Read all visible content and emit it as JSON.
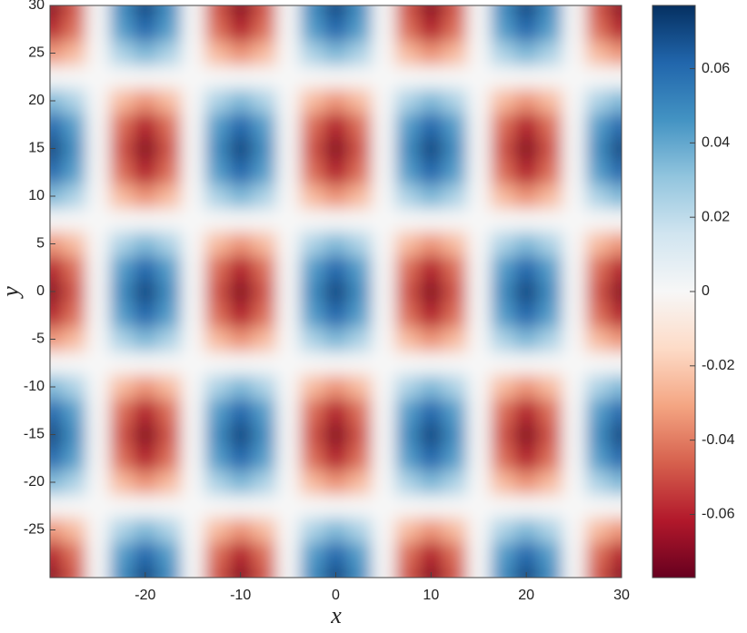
{
  "chart_data": {
    "type": "heatmap",
    "x_label": "x",
    "y_label": "y",
    "x": [
      -30,
      -27.5,
      -25,
      -22.5,
      -20,
      -17.5,
      -15,
      -12.5,
      -10,
      -7.5,
      -5,
      -2.5,
      0,
      2.5,
      5,
      7.5,
      10,
      12.5,
      15,
      17.5,
      20,
      22.5,
      25,
      27.5,
      30
    ],
    "y": [
      -30,
      -27.5,
      -25,
      -22.5,
      -20,
      -17.5,
      -15,
      -12.5,
      -10,
      -7.5,
      -5,
      -2.5,
      0,
      2.5,
      5,
      7.5,
      10,
      12.5,
      15,
      17.5,
      20,
      22.5,
      25,
      27.5,
      30
    ],
    "z": [
      [
        -0.07,
        -0.049,
        0,
        0.049,
        0.07,
        0.049,
        0,
        -0.049,
        -0.07,
        -0.049,
        0,
        0.049,
        0.07,
        0.049,
        0,
        -0.049,
        -0.07,
        -0.049,
        0,
        0.049,
        0.07,
        0.049,
        0,
        -0.049,
        -0.07
      ],
      [
        -0.061,
        -0.043,
        0,
        0.043,
        0.061,
        0.043,
        0,
        -0.043,
        -0.061,
        -0.043,
        0,
        0.043,
        0.061,
        0.043,
        0,
        -0.043,
        -0.061,
        -0.043,
        0,
        0.043,
        0.061,
        0.043,
        0,
        -0.043,
        -0.061
      ],
      [
        -0.035,
        -0.025,
        0,
        0.025,
        0.035,
        0.025,
        0,
        -0.025,
        -0.035,
        -0.025,
        0,
        0.025,
        0.035,
        0.025,
        0,
        -0.025,
        -0.035,
        -0.025,
        0,
        0.025,
        0.035,
        0.025,
        0,
        -0.025,
        -0.035
      ],
      [
        0,
        0,
        0,
        0,
        0,
        0,
        0,
        0,
        0,
        0,
        0,
        0,
        0,
        0,
        0,
        0,
        0,
        0,
        0,
        0,
        0,
        0,
        0,
        0,
        0
      ],
      [
        0.035,
        0.025,
        0,
        -0.025,
        -0.035,
        -0.025,
        0,
        0.025,
        0.035,
        0.025,
        0,
        -0.025,
        -0.035,
        -0.025,
        0,
        0.025,
        0.035,
        0.025,
        0,
        -0.025,
        -0.035,
        -0.025,
        0,
        0.025,
        0.035
      ],
      [
        0.061,
        0.043,
        0,
        -0.043,
        -0.061,
        -0.043,
        0,
        0.043,
        0.061,
        0.043,
        0,
        -0.043,
        -0.061,
        -0.043,
        0,
        0.043,
        0.061,
        0.043,
        0,
        -0.043,
        -0.061,
        -0.043,
        0,
        0.043,
        0.061
      ],
      [
        0.07,
        0.049,
        0,
        -0.049,
        -0.07,
        -0.049,
        0,
        0.049,
        0.07,
        0.049,
        0,
        -0.049,
        -0.07,
        -0.049,
        0,
        0.049,
        0.07,
        0.049,
        0,
        -0.049,
        -0.07,
        -0.049,
        0,
        0.049,
        0.07
      ],
      [
        0.061,
        0.043,
        0,
        -0.043,
        -0.061,
        -0.043,
        0,
        0.043,
        0.061,
        0.043,
        0,
        -0.043,
        -0.061,
        -0.043,
        0,
        0.043,
        0.061,
        0.043,
        0,
        -0.043,
        -0.061,
        -0.043,
        0,
        0.043,
        0.061
      ],
      [
        0.035,
        0.025,
        0,
        -0.025,
        -0.035,
        -0.025,
        0,
        0.025,
        0.035,
        0.025,
        0,
        -0.025,
        -0.035,
        -0.025,
        0,
        0.025,
        0.035,
        0.025,
        0,
        -0.025,
        -0.035,
        -0.025,
        0,
        0.025,
        0.035
      ],
      [
        0,
        0,
        0,
        0,
        0,
        0,
        0,
        0,
        0,
        0,
        0,
        0,
        0,
        0,
        0,
        0,
        0,
        0,
        0,
        0,
        0,
        0,
        0,
        0,
        0
      ],
      [
        -0.035,
        -0.025,
        0,
        0.025,
        0.035,
        0.025,
        0,
        -0.025,
        -0.035,
        -0.025,
        0,
        0.025,
        0.035,
        0.025,
        0,
        -0.025,
        -0.035,
        -0.025,
        0,
        0.025,
        0.035,
        0.025,
        0,
        -0.025,
        -0.035
      ],
      [
        -0.061,
        -0.043,
        0,
        0.043,
        0.061,
        0.043,
        0,
        -0.043,
        -0.061,
        -0.043,
        0,
        0.043,
        0.061,
        0.043,
        0,
        -0.043,
        -0.061,
        -0.043,
        0,
        0.043,
        0.061,
        0.043,
        0,
        -0.043,
        -0.061
      ],
      [
        -0.07,
        -0.049,
        0,
        0.049,
        0.07,
        0.049,
        0,
        -0.049,
        -0.07,
        -0.049,
        0,
        0.049,
        0.07,
        0.049,
        0,
        -0.049,
        -0.07,
        -0.049,
        0,
        0.049,
        0.07,
        0.049,
        0,
        -0.049,
        -0.07
      ],
      [
        -0.061,
        -0.043,
        0,
        0.043,
        0.061,
        0.043,
        0,
        -0.043,
        -0.061,
        -0.043,
        0,
        0.043,
        0.061,
        0.043,
        0,
        -0.043,
        -0.061,
        -0.043,
        0,
        0.043,
        0.061,
        0.043,
        0,
        -0.043,
        -0.061
      ],
      [
        -0.035,
        -0.025,
        0,
        0.025,
        0.035,
        0.025,
        0,
        -0.025,
        -0.035,
        -0.025,
        0,
        0.025,
        0.035,
        0.025,
        0,
        -0.025,
        -0.035,
        -0.025,
        0,
        0.025,
        0.035,
        0.025,
        0,
        -0.025,
        -0.035
      ],
      [
        0,
        0,
        0,
        0,
        0,
        0,
        0,
        0,
        0,
        0,
        0,
        0,
        0,
        0,
        0,
        0,
        0,
        0,
        0,
        0,
        0,
        0,
        0,
        0,
        0
      ],
      [
        0.035,
        0.025,
        0,
        -0.025,
        -0.035,
        -0.025,
        0,
        0.025,
        0.035,
        0.025,
        0,
        -0.025,
        -0.035,
        -0.025,
        0,
        0.025,
        0.035,
        0.025,
        0,
        -0.025,
        -0.035,
        -0.025,
        0,
        0.025,
        0.035
      ],
      [
        0.061,
        0.043,
        0,
        -0.043,
        -0.061,
        -0.043,
        0,
        0.043,
        0.061,
        0.043,
        0,
        -0.043,
        -0.061,
        -0.043,
        0,
        0.043,
        0.061,
        0.043,
        0,
        -0.043,
        -0.061,
        -0.043,
        0,
        0.043,
        0.061
      ],
      [
        0.07,
        0.049,
        0,
        -0.049,
        -0.07,
        -0.049,
        0,
        0.049,
        0.07,
        0.049,
        0,
        -0.049,
        -0.07,
        -0.049,
        0,
        0.049,
        0.07,
        0.049,
        0,
        -0.049,
        -0.07,
        -0.049,
        0,
        0.049,
        0.07
      ],
      [
        0.061,
        0.043,
        0,
        -0.043,
        -0.061,
        -0.043,
        0,
        0.043,
        0.061,
        0.043,
        0,
        -0.043,
        -0.061,
        -0.043,
        0,
        0.043,
        0.061,
        0.043,
        0,
        -0.043,
        -0.061,
        -0.043,
        0,
        0.043,
        0.061
      ],
      [
        0.035,
        0.025,
        0,
        -0.025,
        -0.035,
        -0.025,
        0,
        0.025,
        0.035,
        0.025,
        0,
        -0.025,
        -0.035,
        -0.025,
        0,
        0.025,
        0.035,
        0.025,
        0,
        -0.025,
        -0.035,
        -0.025,
        0,
        0.025,
        0.035
      ],
      [
        0,
        0,
        0,
        0,
        0,
        0,
        0,
        0,
        0,
        0,
        0,
        0,
        0,
        0,
        0,
        0,
        0,
        0,
        0,
        0,
        0,
        0,
        0,
        0,
        0
      ],
      [
        -0.035,
        -0.025,
        0,
        0.025,
        0.035,
        0.025,
        0,
        -0.025,
        -0.035,
        -0.025,
        0,
        0.025,
        0.035,
        0.025,
        0,
        -0.025,
        -0.035,
        -0.025,
        0,
        0.025,
        0.035,
        0.025,
        0,
        -0.025,
        -0.035
      ],
      [
        -0.061,
        -0.043,
        0,
        0.043,
        0.061,
        0.043,
        0,
        -0.043,
        -0.061,
        -0.043,
        0,
        0.043,
        0.061,
        0.043,
        0,
        -0.043,
        -0.061,
        -0.043,
        0,
        0.043,
        0.061,
        0.043,
        0,
        -0.043,
        -0.061
      ],
      [
        -0.07,
        -0.049,
        0,
        0.049,
        0.07,
        0.049,
        0,
        -0.049,
        -0.07,
        -0.049,
        0,
        0.049,
        0.07,
        0.049,
        0,
        -0.049,
        -0.07,
        -0.049,
        0,
        0.049,
        0.07,
        0.049,
        0,
        -0.049,
        -0.07
      ]
    ],
    "xlim": [
      -30,
      30
    ],
    "xticks": [
      -20,
      -10,
      0,
      10,
      20,
      30
    ],
    "ylim": [
      -30,
      30
    ],
    "yticks": [
      -25,
      -20,
      -15,
      -10,
      -5,
      0,
      5,
      10,
      15,
      20,
      25,
      30
    ],
    "zlim": [
      -0.077,
      0.077
    ],
    "zticks": [
      -0.06,
      -0.04,
      -0.02,
      0,
      0.02,
      0.04,
      0.06
    ],
    "colormap": [
      "#67001f",
      "#b2182b",
      "#d6604d",
      "#f4a582",
      "#fddbc7",
      "#f7f7f7",
      "#d1e5f0",
      "#92c5de",
      "#4393c3",
      "#2166ac",
      "#053061"
    ]
  }
}
